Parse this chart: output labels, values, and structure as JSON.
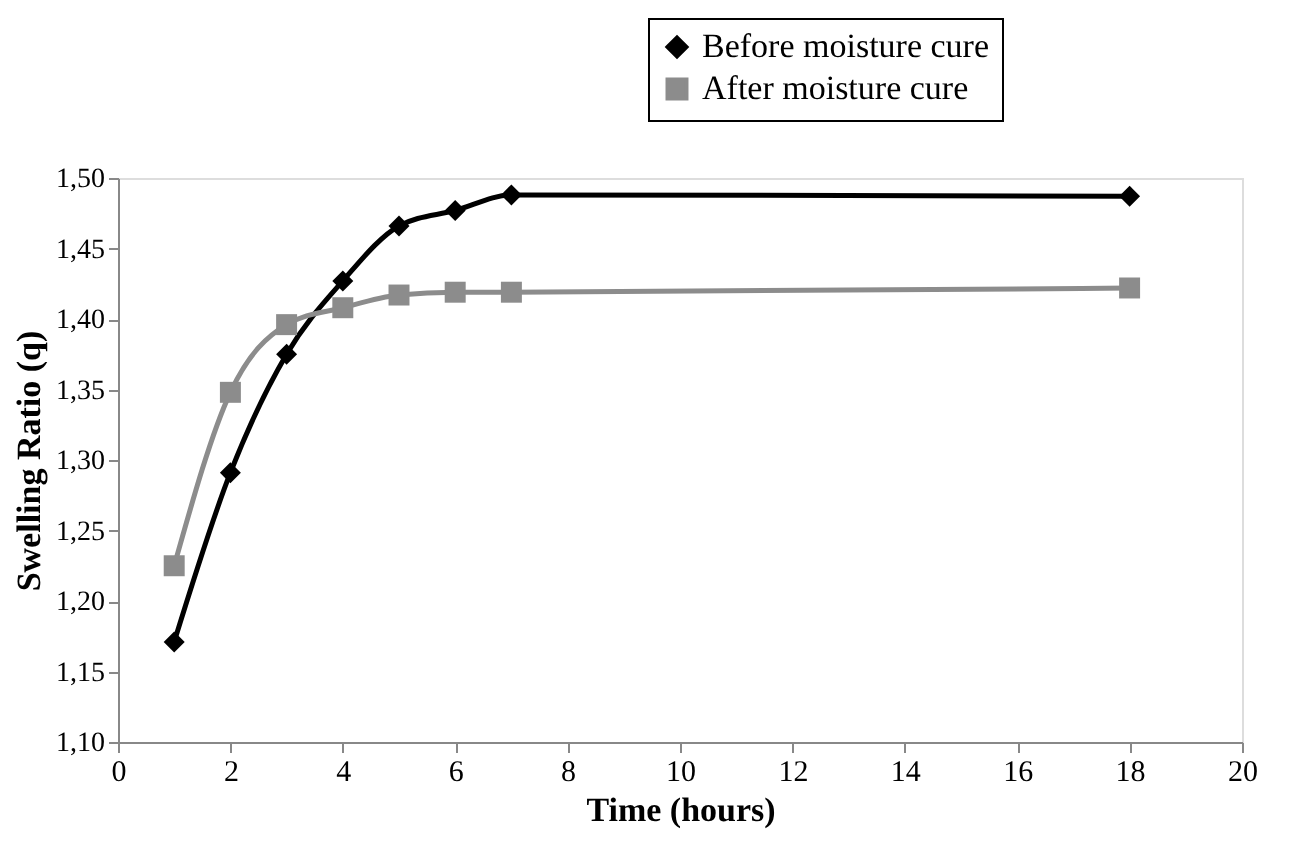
{
  "chart_data": {
    "type": "line",
    "xlabel": "Time (hours)",
    "ylabel": "Swelling Ratio (q)",
    "xlim": [
      0,
      20
    ],
    "xticks": [
      0,
      2,
      4,
      6,
      8,
      10,
      12,
      14,
      16,
      18,
      20
    ],
    "ylim": [
      1.1,
      1.5
    ],
    "yticks": [
      {
        "value": 1.1,
        "label": "1,10"
      },
      {
        "value": 1.15,
        "label": "1,15"
      },
      {
        "value": 1.2,
        "label": "1,20"
      },
      {
        "value": 1.25,
        "label": "1,25"
      },
      {
        "value": 1.3,
        "label": "1,30"
      },
      {
        "value": 1.35,
        "label": "1,35"
      },
      {
        "value": 1.4,
        "label": "1,40"
      },
      {
        "value": 1.45,
        "label": "1,45"
      },
      {
        "value": 1.5,
        "label": "1,50"
      }
    ],
    "x": [
      1,
      2,
      3,
      4,
      5,
      6,
      7,
      18
    ],
    "series": [
      {
        "name": "Before moisture cure",
        "color": "#000000",
        "marker": "diamond",
        "values": [
          1.171,
          1.291,
          1.375,
          1.427,
          1.466,
          1.477,
          1.488,
          1.487
        ]
      },
      {
        "name": "After moisture cure",
        "color": "#8c8c8c",
        "marker": "square",
        "values": [
          1.225,
          1.348,
          1.396,
          1.408,
          1.417,
          1.419,
          1.419,
          1.422
        ]
      }
    ],
    "grid": false,
    "legend": "top right",
    "line_style": "solid"
  }
}
